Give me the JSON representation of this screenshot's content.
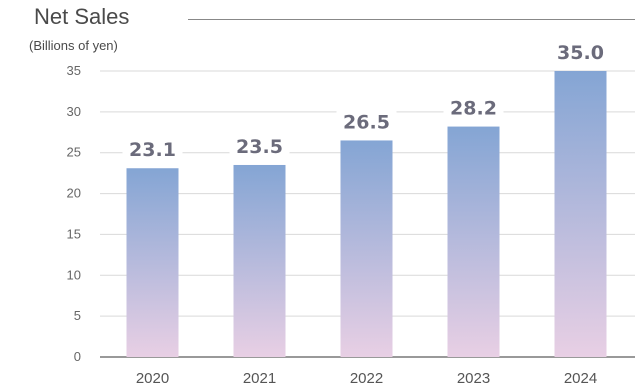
{
  "chart_data": {
    "type": "bar",
    "title": "Net Sales",
    "ylabel": "(Billions of yen)",
    "xlabel": "",
    "categories": [
      "2020",
      "2021",
      "2022",
      "2023",
      "2024"
    ],
    "values": [
      23.1,
      23.5,
      26.5,
      28.2,
      35.0
    ],
    "data_labels": [
      "23.1",
      "23.5",
      "26.5",
      "28.2",
      "35.0"
    ],
    "ylim": [
      0,
      35
    ],
    "yticks": [
      0,
      5,
      10,
      15,
      20,
      25,
      30,
      35
    ],
    "grid": true,
    "legend": "none",
    "colors": {
      "bar_top": "#84a5d4",
      "bar_bottom": "#e8cfe4",
      "label": "#6b6b7b",
      "grid": "#d9d9d9",
      "axis": "#999999"
    }
  }
}
